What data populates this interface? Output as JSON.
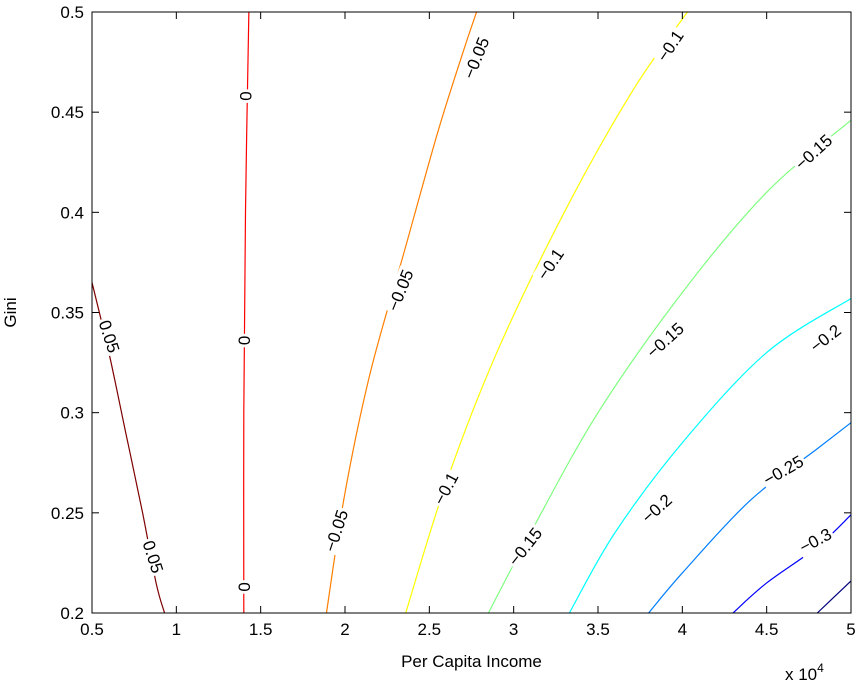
{
  "chart_data": {
    "type": "contour",
    "title": "",
    "xlabel": "Per Capita Income",
    "ylabel": "Gini",
    "x_multiplier_label": "x 10",
    "x_multiplier_exponent": "4",
    "xlim": [
      0.5,
      5
    ],
    "ylim": [
      0.2,
      0.5
    ],
    "x_ticks": [
      0.5,
      1,
      1.5,
      2,
      2.5,
      3,
      3.5,
      4,
      4.5,
      5
    ],
    "x_tick_labels": [
      "0.5",
      "1",
      "1.5",
      "2",
      "2.5",
      "3",
      "3.5",
      "4",
      "4.5",
      "5"
    ],
    "y_ticks": [
      0.2,
      0.25,
      0.3,
      0.35,
      0.4,
      0.45,
      0.5
    ],
    "y_tick_labels": [
      "0.2",
      "0.25",
      "0.3",
      "0.35",
      "0.4",
      "0.45",
      "0.5"
    ],
    "grid": false,
    "levels": [
      {
        "level": 0.05,
        "label": "0.05",
        "color": "#7f0000",
        "points": [
          [
            0.5,
            0.365
          ],
          [
            0.6,
            0.33
          ],
          [
            0.7,
            0.29
          ],
          [
            0.8,
            0.25
          ],
          [
            0.88,
            0.215
          ],
          [
            0.93,
            0.2
          ]
        ],
        "labels": [
          {
            "x": 0.6,
            "y": 0.338,
            "angle": 72
          },
          {
            "x": 0.86,
            "y": 0.228,
            "angle": 72
          }
        ]
      },
      {
        "level": 0,
        "label": "0",
        "color": "#ff0000",
        "points": [
          [
            1.4,
            0.2
          ],
          [
            1.4,
            0.3
          ],
          [
            1.41,
            0.4
          ],
          [
            1.43,
            0.5
          ]
        ],
        "labels": [
          {
            "x": 1.41,
            "y": 0.458,
            "angle": 90
          },
          {
            "x": 1.4,
            "y": 0.336,
            "angle": 90
          },
          {
            "x": 1.4,
            "y": 0.213,
            "angle": 90
          }
        ]
      },
      {
        "level": -0.05,
        "label": "−0.05",
        "color": "#ff7f00",
        "points": [
          [
            1.89,
            0.2
          ],
          [
            2.0,
            0.26
          ],
          [
            2.15,
            0.32
          ],
          [
            2.35,
            0.38
          ],
          [
            2.55,
            0.44
          ],
          [
            2.7,
            0.48
          ],
          [
            2.78,
            0.5
          ]
        ],
        "labels": [
          {
            "x": 2.78,
            "y": 0.477,
            "angle": -68
          },
          {
            "x": 2.33,
            "y": 0.361,
            "angle": -68
          },
          {
            "x": 1.95,
            "y": 0.241,
            "angle": -72
          }
        ]
      },
      {
        "level": -0.1,
        "label": "−0.1",
        "color": "#ffff00",
        "points": [
          [
            2.36,
            0.2
          ],
          [
            2.6,
            0.265
          ],
          [
            2.9,
            0.33
          ],
          [
            3.3,
            0.4
          ],
          [
            3.7,
            0.46
          ],
          [
            4.03,
            0.5
          ]
        ],
        "labels": [
          {
            "x": 3.93,
            "y": 0.483,
            "angle": -56
          },
          {
            "x": 3.22,
            "y": 0.374,
            "angle": -56
          },
          {
            "x": 2.6,
            "y": 0.262,
            "angle": -62
          }
        ]
      },
      {
        "level": -0.15,
        "label": "−0.15",
        "color": "#7fff7f",
        "points": [
          [
            2.85,
            0.2
          ],
          [
            3.1,
            0.24
          ],
          [
            3.5,
            0.3
          ],
          [
            4.0,
            0.36
          ],
          [
            4.5,
            0.41
          ],
          [
            5.0,
            0.446
          ]
        ],
        "labels": [
          {
            "x": 4.78,
            "y": 0.43,
            "angle": -42
          },
          {
            "x": 3.9,
            "y": 0.336,
            "angle": -42
          },
          {
            "x": 3.07,
            "y": 0.233,
            "angle": -52
          }
        ]
      },
      {
        "level": -0.2,
        "label": "−0.2",
        "color": "#00ffff",
        "points": [
          [
            3.33,
            0.2
          ],
          [
            3.6,
            0.24
          ],
          [
            4.0,
            0.285
          ],
          [
            4.5,
            0.33
          ],
          [
            5.0,
            0.357
          ]
        ],
        "labels": [
          {
            "x": 4.85,
            "y": 0.337,
            "angle": -38
          },
          {
            "x": 3.85,
            "y": 0.252,
            "angle": -42
          }
        ]
      },
      {
        "level": -0.25,
        "label": "−0.25",
        "color": "#007fff",
        "points": [
          [
            3.8,
            0.2
          ],
          [
            4.0,
            0.22
          ],
          [
            4.4,
            0.256
          ],
          [
            4.8,
            0.282
          ],
          [
            5.0,
            0.295
          ]
        ],
        "labels": [
          {
            "x": 4.6,
            "y": 0.271,
            "angle": -30
          }
        ]
      },
      {
        "level": -0.3,
        "label": "−0.3",
        "color": "#0000ff",
        "points": [
          [
            4.3,
            0.2
          ],
          [
            4.5,
            0.215
          ],
          [
            4.8,
            0.233
          ],
          [
            5.0,
            0.249
          ]
        ],
        "labels": [
          {
            "x": 4.79,
            "y": 0.236,
            "angle": -28
          }
        ]
      },
      {
        "level": -0.35,
        "label": "",
        "color": "#00007f",
        "points": [
          [
            4.8,
            0.2
          ],
          [
            4.9,
            0.208
          ],
          [
            5.0,
            0.216
          ]
        ],
        "labels": []
      }
    ]
  }
}
